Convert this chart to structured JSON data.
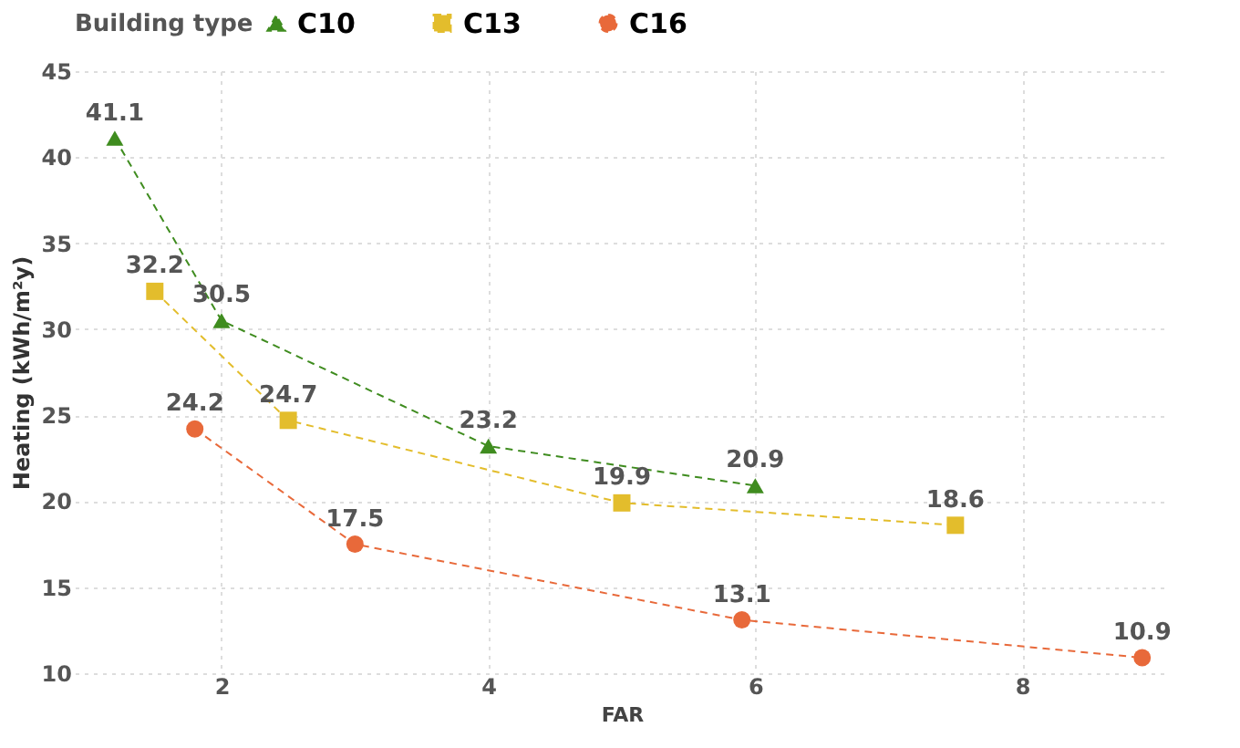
{
  "chart_data": {
    "type": "line",
    "xlabel": "FAR",
    "ylabel": "Heating (kWh/m²y)",
    "legend_title": "Building type",
    "legend": "top",
    "xlim": [
      0.9,
      9.1
    ],
    "xticks": [
      2,
      4,
      6,
      8
    ],
    "ylim": [
      10,
      45
    ],
    "yticks": [
      10,
      15,
      20,
      25,
      30,
      35,
      40,
      45
    ],
    "grid": true,
    "data_labels": true,
    "line_style": "dashed",
    "series": [
      {
        "name": "C10",
        "color": "#3f8c1f",
        "marker": "triangle",
        "x": [
          1.2,
          2,
          4,
          6
        ],
        "values": [
          41.1,
          30.5,
          23.2,
          20.9
        ]
      },
      {
        "name": "C13",
        "color": "#e3bd2c",
        "marker": "square",
        "x": [
          1.5,
          2.5,
          5,
          7.5
        ],
        "values": [
          32.2,
          24.7,
          19.9,
          18.6
        ]
      },
      {
        "name": "C16",
        "color": "#e8693a",
        "marker": "circle",
        "x": [
          1.8,
          3,
          5.9,
          8.9
        ],
        "values": [
          24.2,
          17.5,
          13.1,
          10.9
        ]
      }
    ]
  }
}
